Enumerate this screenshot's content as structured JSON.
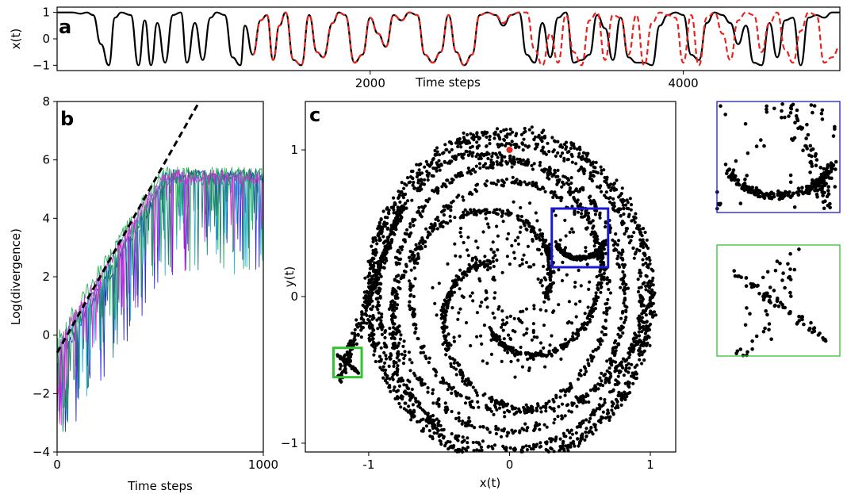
{
  "chart_data": [
    {
      "panel": "a",
      "type": "line",
      "xlabel": "Time steps",
      "ylabel": "x(t)",
      "xlim": [
        0,
        5000
      ],
      "ylim": [
        -1.2,
        1.2
      ],
      "xticks": [
        2000,
        4000
      ],
      "yticks": [
        -1,
        0,
        1
      ],
      "series": [
        {
          "style": "solid",
          "color": "#000000",
          "x": [
            0,
            100,
            150,
            190,
            230,
            280,
            330,
            370,
            410,
            470,
            520,
            560,
            600,
            640,
            690,
            740,
            790,
            830,
            880,
            930,
            980,
            1020,
            1070,
            1120,
            1170,
            1200,
            1250,
            1300,
            1340,
            1380,
            1420,
            1460,
            1510,
            1560,
            1610,
            1660,
            1700,
            1760,
            1800,
            1840,
            1900,
            1950,
            2000,
            2050,
            2100,
            2150,
            2200,
            2250,
            2300,
            2350,
            2400,
            2450,
            2500,
            2550,
            2600,
            2650,
            2700,
            2750,
            2800,
            2850,
            2900,
            2950,
            3000,
            3050,
            3100,
            3150,
            3200,
            3250,
            3300,
            3350,
            3400,
            3450,
            3500,
            3550,
            3600,
            3650,
            3700,
            3750,
            3800,
            3850,
            3900,
            3950,
            4000,
            4050,
            4100,
            4150,
            4200,
            4250,
            4300,
            4350,
            4400,
            4450,
            4500,
            4550,
            4600,
            4650,
            4700,
            4750,
            4800,
            4850,
            4900,
            4950,
            5000
          ],
          "y": [
            1,
            1,
            0.95,
            1,
            0.9,
            -0.2,
            -1,
            0.8,
            1,
            0.9,
            -1,
            0.7,
            -1,
            0.6,
            -0.9,
            0.9,
            1,
            -0.9,
            0.6,
            -0.8,
            0.8,
            1,
            0.9,
            -0.7,
            -1,
            0.5,
            -0.6,
            0.7,
            0.9,
            -0.8,
            0.5,
            1,
            -0.8,
            -1,
            0.9,
            -0.5,
            -0.7,
            0.6,
            1,
            0.9,
            -0.9,
            -0.6,
            0.8,
            0.2,
            -0.3,
            0.9,
            0.7,
            1,
            0.9,
            -0.6,
            -0.9,
            -0.5,
            0.9,
            -0.5,
            -1,
            -0.6,
            0.9,
            1,
            0.9,
            0.5,
            0.9,
            1,
            -0.6,
            -0.9,
            0.6,
            -0.7,
            0.8,
            1,
            -0.9,
            -0.8,
            -0.6,
            0.9,
            0.4,
            -0.8,
            0.8,
            -0.7,
            -0.9,
            -0.9,
            -1,
            0.5,
            0.9,
            1,
            0.9,
            -0.6,
            -0.8,
            0.6,
            1,
            0.9,
            0.6,
            -0.2,
            0.5,
            -0.9,
            -1,
            0.6,
            -0.7,
            0.7,
            0.8,
            -1,
            0.8,
            0.9,
            0.8,
            1,
            1
          ]
        },
        {
          "style": "dashed",
          "color": "#e8231e",
          "x": [
            1250,
            1300,
            1340,
            1380,
            1420,
            1460,
            1510,
            1560,
            1610,
            1660,
            1700,
            1760,
            1800,
            1840,
            1900,
            1950,
            2000,
            2050,
            2100,
            2150,
            2200,
            2250,
            2300,
            2350,
            2400,
            2450,
            2500,
            2550,
            2600,
            2650,
            2700,
            2750,
            2800,
            2850,
            2900,
            2950,
            3000,
            3050,
            3100,
            3150,
            3200,
            3250,
            3300,
            3350,
            3400,
            3450,
            3500,
            3550,
            3600,
            3650,
            3700,
            3750,
            3800,
            3850,
            3900,
            3950,
            4000,
            4050,
            4100,
            4150,
            4200,
            4250,
            4300,
            4350,
            4400,
            4450,
            4500,
            4550,
            4600,
            4650,
            4700,
            4750,
            4800,
            4850,
            4900,
            4950,
            5000
          ],
          "y": [
            -0.6,
            0.7,
            0.9,
            -0.8,
            0.5,
            1,
            -0.8,
            -1,
            0.9,
            -0.5,
            -0.7,
            0.6,
            1,
            0.9,
            -0.9,
            -0.6,
            0.8,
            0.2,
            -0.3,
            0.9,
            0.7,
            1,
            0.9,
            -0.6,
            -0.9,
            -0.5,
            0.9,
            -0.5,
            -1,
            -0.6,
            0.9,
            1,
            0.9,
            0.6,
            0.9,
            1,
            1,
            -0.4,
            -1,
            0.2,
            -0.9,
            0.9,
            -0.5,
            -1,
            0.7,
            1,
            -0.8,
            0.9,
            0.8,
            -0.6,
            0.9,
            -1,
            0.6,
            1,
            0.9,
            0.8,
            -0.9,
            0.9,
            -1,
            0.8,
            1,
            0.2,
            -0.8,
            0.7,
            1,
            0.9,
            -0.5,
            0.6,
            1,
            -0.4,
            -0.9,
            0.3,
            1,
            0.9,
            -0.9,
            -0.7,
            -0.3
          ]
        }
      ]
    },
    {
      "panel": "b",
      "type": "line",
      "xlabel": "Time steps",
      "ylabel": "Log(divergence)",
      "xlim": [
        0,
        1000
      ],
      "ylim": [
        -4,
        8
      ],
      "xticks": [
        0,
        1000
      ],
      "yticks": [
        -4,
        -2,
        0,
        2,
        4,
        6,
        8
      ],
      "fit_line": {
        "style": "dashed",
        "color": "#000000",
        "x": [
          0,
          690
        ],
        "y": [
          -0.6,
          8
        ]
      },
      "series_colors": [
        "#2b2bd9",
        "#2bb5d9",
        "#2ab35a",
        "#1f7a6e",
        "#d92bd9"
      ]
    },
    {
      "panel": "c",
      "type": "scatter",
      "xlabel": "x(t)",
      "ylabel": "y(t)",
      "xlim": [
        -1.45,
        1.18
      ],
      "ylim": [
        -1.06,
        1.33
      ],
      "xticks": [
        -1,
        0,
        1
      ],
      "yticks": [
        -1,
        0,
        1
      ],
      "marked_point": {
        "x": 0,
        "y": 1.0,
        "color": "#e8231e"
      },
      "zoom_boxes": [
        {
          "name": "blue",
          "color": "#1a1ad6",
          "x": [
            0.3,
            0.7
          ],
          "y": [
            0.2,
            0.6
          ]
        },
        {
          "name": "green",
          "color": "#33c233",
          "x": [
            -1.25,
            -1.05
          ],
          "y": [
            -0.55,
            -0.35
          ]
        }
      ]
    }
  ],
  "panel_labels": {
    "a": "a",
    "b": "b",
    "c": "c"
  }
}
